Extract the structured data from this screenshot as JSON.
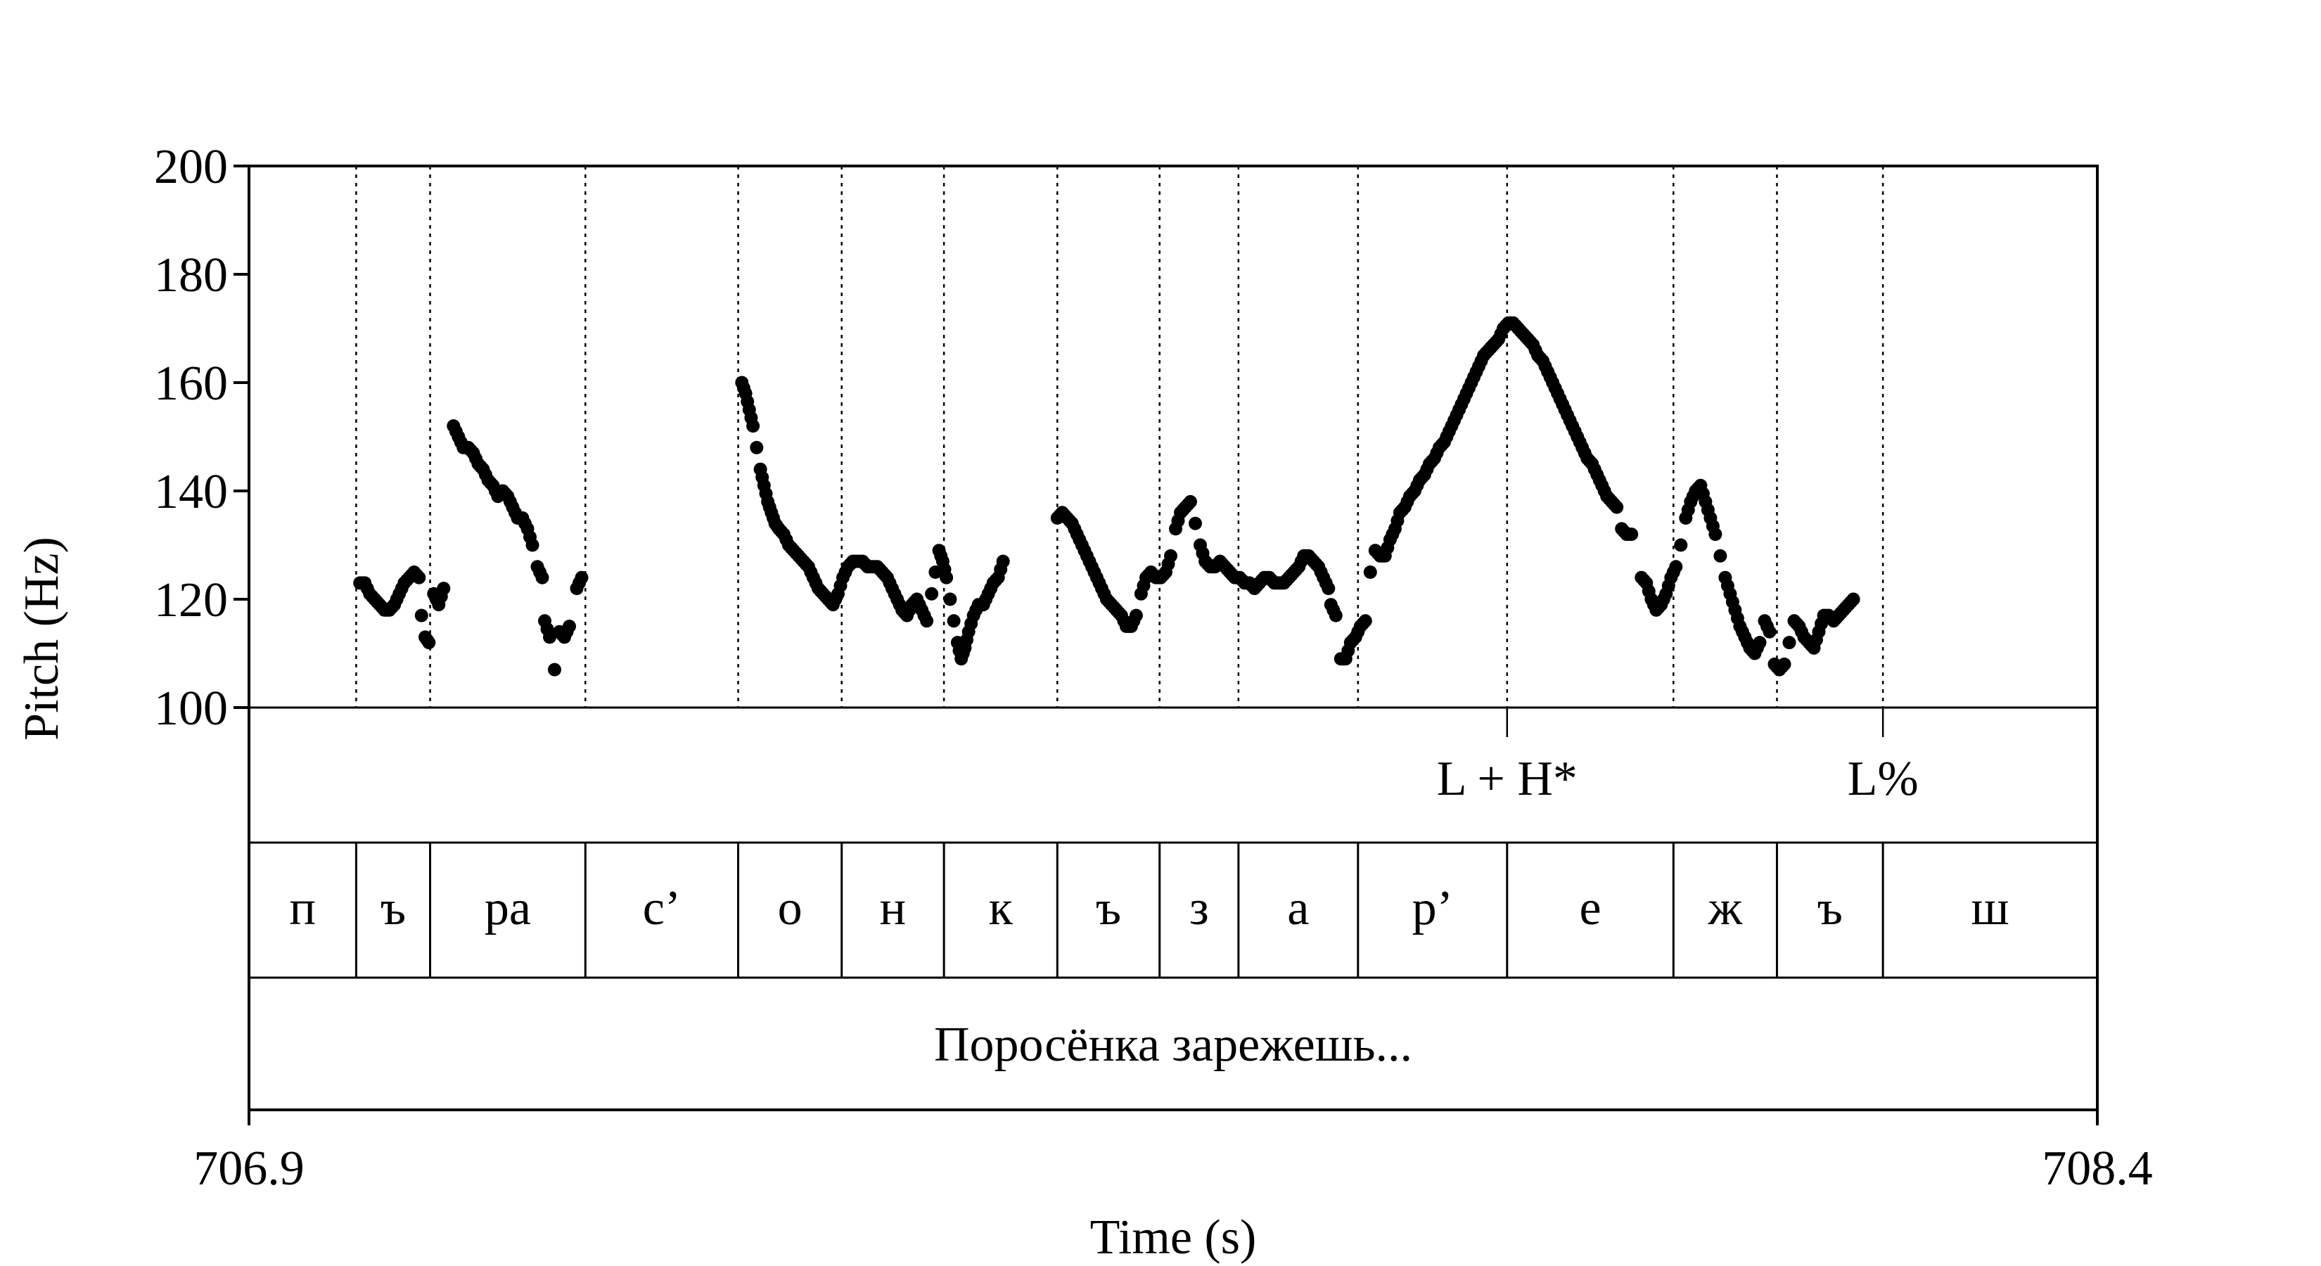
{
  "chart_data": {
    "type": "scatter",
    "xlabel": "Time (s)",
    "ylabel": "Pitch (Hz)",
    "xlim": [
      706.9,
      708.4
    ],
    "ylim": [
      100,
      200
    ],
    "x_tick_labels": [
      "706.9",
      "708.4"
    ],
    "y_ticks": [
      100,
      120,
      140,
      160,
      180,
      200
    ],
    "y_tick_labels": [
      "100",
      "120",
      "140",
      "160",
      "180",
      "200"
    ],
    "boundaries": [
      706.987,
      707.047,
      707.173,
      707.297,
      707.381,
      707.464,
      707.556,
      707.639,
      707.703,
      707.8,
      707.921,
      708.056,
      708.14,
      708.226
    ],
    "segments": [
      {
        "label": "п",
        "start": 706.9,
        "end": 706.987
      },
      {
        "label": "ъ",
        "start": 706.987,
        "end": 707.047
      },
      {
        "label": "ра",
        "start": 707.047,
        "end": 707.173
      },
      {
        "label": "с’",
        "start": 707.173,
        "end": 707.297
      },
      {
        "label": "о",
        "start": 707.297,
        "end": 707.381
      },
      {
        "label": "н",
        "start": 707.381,
        "end": 707.464
      },
      {
        "label": "к",
        "start": 707.464,
        "end": 707.556
      },
      {
        "label": "ъ",
        "start": 707.556,
        "end": 707.639
      },
      {
        "label": "з",
        "start": 707.639,
        "end": 707.703
      },
      {
        "label": "а",
        "start": 707.703,
        "end": 707.8
      },
      {
        "label": "р’",
        "start": 707.8,
        "end": 707.921
      },
      {
        "label": "е",
        "start": 707.921,
        "end": 708.056
      },
      {
        "label": "ж",
        "start": 708.056,
        "end": 708.14
      },
      {
        "label": "ъ",
        "start": 708.14,
        "end": 708.226
      },
      {
        "label": "ш",
        "start": 708.226,
        "end": 708.4
      }
    ],
    "tones": [
      {
        "label": "L + H*",
        "time": 707.921
      },
      {
        "label": "L%",
        "time": 708.226
      }
    ],
    "sentence": "Поросёнка зарежешь...",
    "pitch_contours": [
      [
        [
          706.99,
          123
        ],
        [
          706.994,
          123
        ],
        [
          706.998,
          121
        ],
        [
          707.002,
          120
        ],
        [
          707.006,
          119
        ],
        [
          707.01,
          118
        ],
        [
          707.014,
          118
        ],
        [
          707.018,
          119
        ],
        [
          707.022,
          121
        ],
        [
          707.026,
          123
        ],
        [
          707.03,
          124
        ],
        [
          707.034,
          125
        ],
        [
          707.038,
          124
        ]
      ],
      [
        [
          707.04,
          117
        ],
        [
          707.043,
          113
        ],
        [
          707.046,
          112
        ]
      ],
      [
        [
          707.05,
          121
        ],
        [
          707.054,
          119
        ],
        [
          707.058,
          122
        ]
      ],
      [
        [
          707.066,
          152
        ],
        [
          707.07,
          150
        ],
        [
          707.074,
          148
        ],
        [
          707.078,
          148
        ],
        [
          707.082,
          147
        ],
        [
          707.086,
          145
        ],
        [
          707.09,
          144
        ],
        [
          707.094,
          142
        ],
        [
          707.098,
          141
        ],
        [
          707.102,
          139
        ],
        [
          707.106,
          140
        ],
        [
          707.11,
          139
        ],
        [
          707.114,
          137
        ],
        [
          707.118,
          135
        ],
        [
          707.122,
          135
        ],
        [
          707.126,
          133
        ],
        [
          707.13,
          130
        ],
        [
          707.134,
          126
        ],
        [
          707.138,
          124
        ]
      ],
      [
        [
          707.14,
          116
        ],
        [
          707.144,
          113
        ],
        [
          707.148,
          107
        ],
        [
          707.152,
          114
        ],
        [
          707.156,
          113
        ],
        [
          707.16,
          115
        ]
      ],
      [
        [
          707.166,
          122
        ],
        [
          707.17,
          124
        ]
      ],
      [
        [
          707.3,
          160
        ],
        [
          707.303,
          158
        ],
        [
          707.306,
          155
        ],
        [
          707.309,
          152
        ],
        [
          707.312,
          148
        ],
        [
          707.315,
          144
        ],
        [
          707.318,
          141
        ],
        [
          707.321,
          138
        ],
        [
          707.324,
          136
        ],
        [
          707.327,
          134
        ],
        [
          707.33,
          133
        ],
        [
          707.334,
          132
        ],
        [
          707.338,
          130
        ],
        [
          707.342,
          129
        ],
        [
          707.346,
          128
        ],
        [
          707.35,
          127
        ],
        [
          707.354,
          126
        ],
        [
          707.358,
          124
        ],
        [
          707.362,
          122
        ],
        [
          707.366,
          121
        ],
        [
          707.37,
          120
        ],
        [
          707.374,
          119
        ],
        [
          707.378,
          121
        ],
        [
          707.382,
          124
        ],
        [
          707.386,
          126
        ],
        [
          707.39,
          127
        ],
        [
          707.394,
          127
        ],
        [
          707.398,
          127
        ],
        [
          707.402,
          126
        ],
        [
          707.406,
          126
        ],
        [
          707.41,
          126
        ],
        [
          707.414,
          125
        ],
        [
          707.418,
          124
        ],
        [
          707.422,
          122
        ],
        [
          707.426,
          120
        ],
        [
          707.43,
          118
        ],
        [
          707.434,
          117
        ],
        [
          707.438,
          119
        ],
        [
          707.442,
          120
        ],
        [
          707.446,
          118
        ],
        [
          707.45,
          116
        ]
      ],
      [
        [
          707.454,
          121
        ],
        [
          707.457,
          125
        ],
        [
          707.46,
          129
        ],
        [
          707.463,
          127
        ],
        [
          707.466,
          124
        ],
        [
          707.469,
          120
        ],
        [
          707.472,
          116
        ],
        [
          707.475,
          112
        ],
        [
          707.478,
          109
        ],
        [
          707.481,
          111
        ],
        [
          707.484,
          114
        ],
        [
          707.488,
          117
        ],
        [
          707.492,
          119
        ],
        [
          707.496,
          119
        ],
        [
          707.5,
          121
        ],
        [
          707.504,
          123
        ],
        [
          707.508,
          124
        ],
        [
          707.512,
          127
        ]
      ],
      [
        [
          707.556,
          135
        ],
        [
          707.56,
          136
        ],
        [
          707.564,
          135
        ],
        [
          707.568,
          134
        ],
        [
          707.572,
          132
        ],
        [
          707.576,
          130
        ],
        [
          707.58,
          128
        ],
        [
          707.584,
          126
        ],
        [
          707.588,
          124
        ],
        [
          707.592,
          122
        ],
        [
          707.596,
          120
        ],
        [
          707.6,
          119
        ],
        [
          707.604,
          118
        ],
        [
          707.608,
          117
        ],
        [
          707.612,
          115
        ],
        [
          707.616,
          115
        ],
        [
          707.62,
          117
        ],
        [
          707.624,
          121
        ],
        [
          707.628,
          124
        ],
        [
          707.632,
          125
        ],
        [
          707.636,
          124
        ],
        [
          707.64,
          124
        ],
        [
          707.644,
          125
        ],
        [
          707.648,
          128
        ],
        [
          707.652,
          133
        ],
        [
          707.656,
          136
        ],
        [
          707.66,
          137
        ],
        [
          707.664,
          138
        ],
        [
          707.668,
          134
        ],
        [
          707.672,
          130
        ],
        [
          707.676,
          127
        ],
        [
          707.68,
          126
        ],
        [
          707.684,
          126
        ],
        [
          707.688,
          127
        ],
        [
          707.692,
          126
        ],
        [
          707.696,
          125
        ],
        [
          707.7,
          124
        ],
        [
          707.704,
          124
        ],
        [
          707.708,
          123
        ],
        [
          707.712,
          123
        ],
        [
          707.716,
          122
        ],
        [
          707.72,
          123
        ],
        [
          707.724,
          124
        ],
        [
          707.728,
          124
        ],
        [
          707.732,
          123
        ],
        [
          707.736,
          123
        ],
        [
          707.74,
          123
        ],
        [
          707.744,
          124
        ],
        [
          707.748,
          125
        ],
        [
          707.752,
          126
        ],
        [
          707.756,
          128
        ],
        [
          707.76,
          128
        ],
        [
          707.764,
          127
        ],
        [
          707.768,
          126
        ],
        [
          707.772,
          124
        ],
        [
          707.776,
          122
        ]
      ],
      [
        [
          707.778,
          119
        ],
        [
          707.782,
          117
        ],
        [
          707.786,
          109
        ],
        [
          707.79,
          109
        ],
        [
          707.794,
          112
        ],
        [
          707.798,
          113
        ],
        [
          707.802,
          115
        ],
        [
          707.806,
          116
        ]
      ],
      [
        [
          707.81,
          125
        ],
        [
          707.814,
          129
        ],
        [
          707.818,
          128
        ],
        [
          707.822,
          128
        ],
        [
          707.826,
          131
        ],
        [
          707.83,
          133
        ],
        [
          707.834,
          136
        ],
        [
          707.838,
          137
        ],
        [
          707.842,
          139
        ],
        [
          707.846,
          140
        ],
        [
          707.85,
          142
        ],
        [
          707.854,
          143
        ],
        [
          707.858,
          145
        ],
        [
          707.862,
          146
        ],
        [
          707.866,
          148
        ],
        [
          707.87,
          149
        ],
        [
          707.874,
          151
        ],
        [
          707.878,
          153
        ],
        [
          707.882,
          155
        ],
        [
          707.886,
          157
        ],
        [
          707.89,
          159
        ],
        [
          707.894,
          161
        ],
        [
          707.898,
          163
        ],
        [
          707.902,
          165
        ],
        [
          707.906,
          166
        ],
        [
          707.91,
          167
        ],
        [
          707.914,
          168
        ],
        [
          707.918,
          170
        ],
        [
          707.922,
          171
        ],
        [
          707.926,
          171
        ],
        [
          707.93,
          170
        ],
        [
          707.934,
          169
        ],
        [
          707.938,
          168
        ],
        [
          707.942,
          167
        ],
        [
          707.946,
          165
        ],
        [
          707.95,
          164
        ],
        [
          707.954,
          162
        ],
        [
          707.958,
          160
        ],
        [
          707.962,
          158
        ],
        [
          707.966,
          156
        ],
        [
          707.97,
          154
        ],
        [
          707.974,
          152
        ],
        [
          707.978,
          150
        ],
        [
          707.982,
          148
        ],
        [
          707.986,
          146
        ],
        [
          707.99,
          145
        ],
        [
          707.994,
          143
        ],
        [
          707.998,
          141
        ],
        [
          708.002,
          139
        ],
        [
          708.006,
          138
        ],
        [
          708.01,
          137
        ]
      ],
      [
        [
          708.014,
          133
        ],
        [
          708.018,
          132
        ],
        [
          708.022,
          132
        ]
      ],
      [
        [
          708.03,
          124
        ],
        [
          708.034,
          123
        ],
        [
          708.038,
          120
        ],
        [
          708.042,
          118
        ],
        [
          708.046,
          119
        ],
        [
          708.05,
          121
        ],
        [
          708.054,
          124
        ],
        [
          708.058,
          126
        ],
        [
          708.062,
          130
        ],
        [
          708.066,
          135
        ],
        [
          708.07,
          138
        ],
        [
          708.074,
          140
        ],
        [
          708.078,
          141
        ],
        [
          708.082,
          138
        ],
        [
          708.086,
          135
        ],
        [
          708.09,
          132
        ],
        [
          708.094,
          128
        ],
        [
          708.098,
          124
        ],
        [
          708.102,
          121
        ],
        [
          708.106,
          118
        ],
        [
          708.11,
          115
        ],
        [
          708.114,
          113
        ],
        [
          708.118,
          111
        ],
        [
          708.122,
          110
        ],
        [
          708.126,
          112
        ],
        [
          708.13,
          116
        ],
        [
          708.134,
          114
        ],
        [
          708.138,
          108
        ],
        [
          708.142,
          107
        ],
        [
          708.146,
          108
        ],
        [
          708.15,
          112
        ],
        [
          708.154,
          116
        ],
        [
          708.158,
          115
        ],
        [
          708.162,
          113
        ],
        [
          708.166,
          112
        ],
        [
          708.17,
          111
        ],
        [
          708.174,
          114
        ],
        [
          708.178,
          117
        ],
        [
          708.182,
          117
        ],
        [
          708.186,
          116
        ],
        [
          708.19,
          117
        ],
        [
          708.194,
          118
        ],
        [
          708.198,
          119
        ],
        [
          708.202,
          120
        ]
      ]
    ]
  }
}
